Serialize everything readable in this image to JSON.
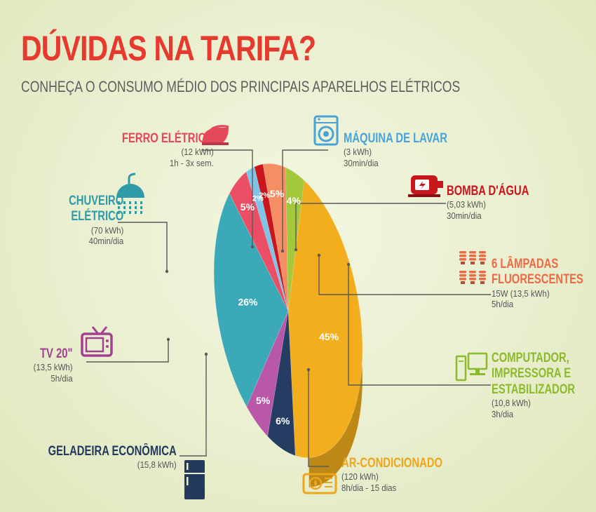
{
  "header": {
    "title": "DÚVIDAS NA TARIFA?",
    "subtitle": "CONHEÇA O CONSUMO MÉDIO DOS PRINCIPAIS APARELHOS ELÉTRICOS"
  },
  "chart_data": {
    "type": "pie",
    "title": "DÚVIDAS NA TARIFA?",
    "slices": [
      {
        "key": "bomba",
        "name": "BOMBA D'ÁGUA",
        "value": 2,
        "label": "2%",
        "color": "#c9161d",
        "name_color": "#c9161d",
        "lines": [
          "(5,03 kWh)",
          "30min/dia"
        ],
        "icon": "water-pump-icon"
      },
      {
        "key": "lampadas",
        "name": "6 LÂMPADAS FLUORESCENTES",
        "name_lines": [
          "6 LÂMPADAS",
          "FLUORESCENTES"
        ],
        "value": 5,
        "label": "5%",
        "color": "#f58e63",
        "name_color": "#ec6b47",
        "lines": [
          "15W (13,5 kWh)",
          "5h/dia"
        ],
        "icon": "fluorescent-lamps-icon"
      },
      {
        "key": "computador",
        "name": "COMPUTADOR, IMPRESSORA E ESTABILIZADOR",
        "name_lines": [
          "COMPUTADOR,",
          "IMPRESSORA E",
          "ESTABILIZADOR"
        ],
        "value": 4,
        "label": "4%",
        "color": "#a4c83b",
        "name_color": "#8dba2c",
        "lines": [
          "(10,8 kWh)",
          "3h/dia"
        ],
        "icon": "computer-icon"
      },
      {
        "key": "ar",
        "name": "AR-CONDICIONADO",
        "value": 45,
        "label": "45%",
        "color": "#f3ae1d",
        "name_color": "#eda51a",
        "lines": [
          "(120 kWh)",
          "8h/dia - 15 dias"
        ],
        "icon": "air-conditioner-icon"
      },
      {
        "key": "geladeira",
        "name": "GELADEIRA ECONÔMICA",
        "value": 6,
        "label": "6%",
        "color": "#263d63",
        "name_color": "#233a5d",
        "lines": [
          "(15,8 kWh)"
        ],
        "icon": "refrigerator-icon"
      },
      {
        "key": "tv",
        "name": "TV 20\"",
        "value": 5,
        "label": "5%",
        "color": "#b957a8",
        "name_color": "#a2428f",
        "lines": [
          "(13,5 kWh)",
          "5h/dia"
        ],
        "icon": "tv-icon"
      },
      {
        "key": "chuveiro",
        "name": "CHUVEIRO ELÉTRICO",
        "name_lines": [
          "CHUVEIRO",
          "ELÉTRICO"
        ],
        "value": 26,
        "label": "26%",
        "color": "#3ba9b8",
        "name_color": "#2f9ba9",
        "lines": [
          "(70 kWh)",
          "40min/dia"
        ],
        "icon": "shower-icon"
      },
      {
        "key": "ferro",
        "name": "FERRO ELÉTRICO",
        "value": 5,
        "label": "5%",
        "color": "#ea4f65",
        "name_color": "#e5475b",
        "lines": [
          "(12 kWh)",
          "1h - 3x sem."
        ],
        "icon": "iron-icon"
      },
      {
        "key": "maquina",
        "name": "MÁQUINA DE LAVAR",
        "value": 2,
        "label": "2%",
        "color": "#7ec3e8",
        "name_color": "#4aa3d7",
        "lines": [
          "(3 kWh)",
          "30min/dia"
        ],
        "icon": "washing-machine-icon"
      }
    ]
  }
}
